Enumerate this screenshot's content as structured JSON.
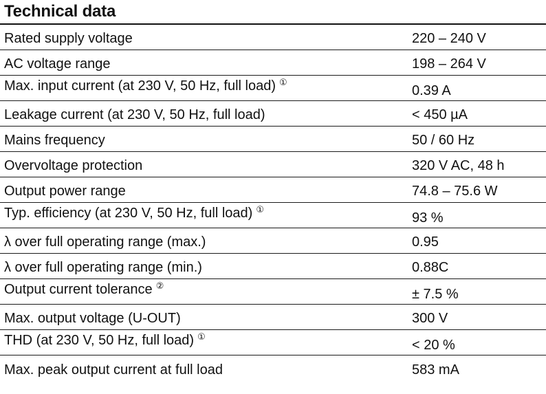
{
  "title": "Technical data",
  "rows": [
    {
      "parameter": "Rated supply voltage",
      "note": "",
      "value": "220 – 240 V"
    },
    {
      "parameter": "AC voltage range",
      "note": "",
      "value": "198 – 264 V"
    },
    {
      "parameter": "Max. input current (at 230 V, 50 Hz, full load)",
      "note": "①",
      "value": "0.39 A"
    },
    {
      "parameter": "Leakage current (at 230 V, 50 Hz, full load)",
      "note": "",
      "value": "< 450 µA"
    },
    {
      "parameter": "Mains frequency",
      "note": "",
      "value": "50 / 60 Hz"
    },
    {
      "parameter": "Overvoltage protection",
      "note": "",
      "value": "320 V AC, 48 h"
    },
    {
      "parameter": "Output power range",
      "note": "",
      "value": "74.8 – 75.6 W"
    },
    {
      "parameter": "Typ. efficiency (at 230 V, 50 Hz, full load)",
      "note": "①",
      "value": "93 %"
    },
    {
      "parameter": "λ over full operating range (max.)",
      "note": "",
      "value": "0.95"
    },
    {
      "parameter": "λ over full operating range (min.)",
      "note": "",
      "value": "0.88C"
    },
    {
      "parameter": "Output current tolerance",
      "note": "②",
      "value": "± 7.5 %"
    },
    {
      "parameter": "Max. output voltage (U-OUT)",
      "note": "",
      "value": "300 V"
    },
    {
      "parameter": "THD (at 230 V, 50 Hz, full load)",
      "note": "①",
      "value": "< 20 %"
    },
    {
      "parameter": "Max. peak output current at full load",
      "note": "",
      "value": "583 mA"
    }
  ]
}
